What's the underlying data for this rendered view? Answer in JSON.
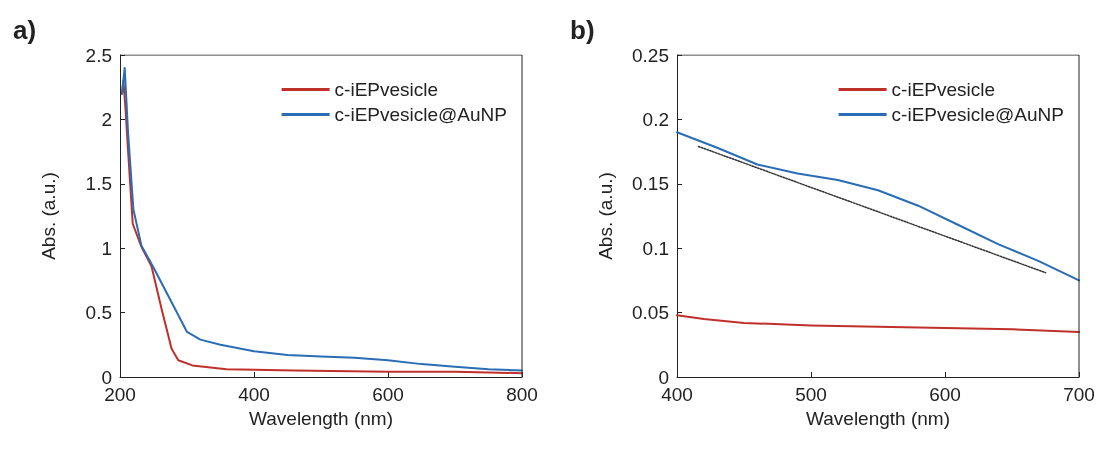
{
  "chart_data": [
    {
      "type": "line",
      "title": "a)",
      "xlabel": "Wavelength (nm)",
      "ylabel": "Abs. (a.u.)",
      "xlim": [
        200,
        800
      ],
      "xticks": [
        200,
        400,
        600,
        800
      ],
      "ylim": [
        0,
        2.5
      ],
      "yticks": [
        0,
        0.5,
        1,
        1.5,
        2,
        2.5
      ],
      "grid": false,
      "legend": "top right",
      "marker": "none",
      "line_style": "solid",
      "series": [
        {
          "name": "c-iEPvesicle",
          "color": "#c0302a",
          "x": [
            203,
            205,
            208,
            212,
            219,
            232,
            247,
            262,
            277,
            287,
            308,
            359,
            461,
            600,
            700,
            800
          ],
          "values": [
            2.2,
            2.3,
            2.1,
            1.76,
            1.19,
            1.01,
            0.86,
            0.53,
            0.22,
            0.13,
            0.09,
            0.06,
            0.05,
            0.04,
            0.04,
            0.03
          ]
        },
        {
          "name": "c-iEPvesicle@AuNP",
          "color": "#2a6db5",
          "x": [
            203,
            207,
            212,
            220,
            232,
            250,
            270,
            290,
            300,
            320,
            350,
            400,
            450,
            500,
            550,
            600,
            650,
            700,
            750,
            800
          ],
          "values": [
            2.2,
            2.4,
            1.9,
            1.3,
            1.02,
            0.85,
            0.65,
            0.45,
            0.35,
            0.29,
            0.25,
            0.2,
            0.17,
            0.16,
            0.15,
            0.13,
            0.1,
            0.08,
            0.06,
            0.05
          ]
        }
      ]
    },
    {
      "type": "line",
      "title": "b)",
      "xlabel": "Wavelength (nm)",
      "ylabel": "Abs. (a.u.)",
      "xlim": [
        400,
        700
      ],
      "xticks": [
        400,
        500,
        600,
        700
      ],
      "ylim": [
        0,
        0.25
      ],
      "yticks": [
        0,
        0.05,
        0.1,
        0.15,
        0.2,
        0.25
      ],
      "grid": false,
      "legend": "top right",
      "marker": "none",
      "line_style": "solid",
      "series": [
        {
          "name": "c-iEPvesicle",
          "color": "#c0302a",
          "x": [
            400,
            420,
            450,
            500,
            550,
            600,
            650,
            700
          ],
          "values": [
            0.048,
            0.045,
            0.042,
            0.04,
            0.039,
            0.038,
            0.037,
            0.035
          ]
        },
        {
          "name": "c-iEPvesicle@AuNP",
          "color": "#2a6db5",
          "x": [
            400,
            430,
            460,
            490,
            520,
            550,
            580,
            610,
            640,
            670,
            700
          ],
          "values": [
            0.19,
            0.178,
            0.165,
            0.158,
            0.153,
            0.145,
            0.133,
            0.118,
            0.103,
            0.09,
            0.075
          ]
        },
        {
          "color": "#333333",
          "line_style": "dotted",
          "x": [
            416,
            675
          ],
          "values": [
            0.179,
            0.081
          ]
        }
      ]
    }
  ]
}
